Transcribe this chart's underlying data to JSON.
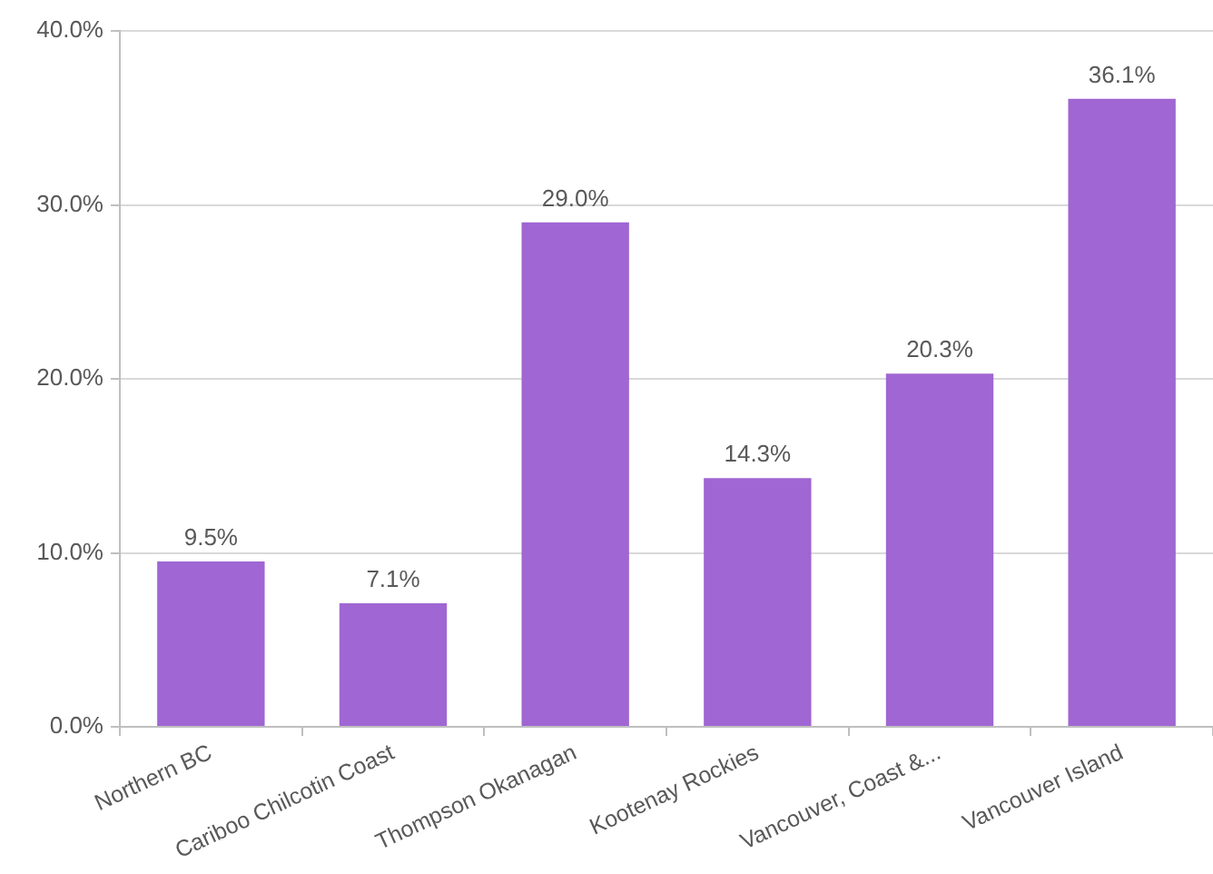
{
  "chart_data": {
    "type": "bar",
    "categories": [
      "Northern BC",
      "Cariboo Chilcotin Coast",
      "Thompson Okanagan",
      "Kootenay Rockies",
      "Vancouver, Coast &...",
      "Vancouver Island"
    ],
    "values": [
      9.5,
      7.1,
      29.0,
      14.3,
      20.3,
      36.1
    ],
    "value_labels": [
      "9.5%",
      "7.1%",
      "29.0%",
      "14.3%",
      "20.3%",
      "36.1%"
    ],
    "color": "#a066d3",
    "ylim": [
      0,
      40
    ],
    "yticks": [
      {
        "value": 0,
        "label": "0.0%"
      },
      {
        "value": 10,
        "label": "10.0%"
      },
      {
        "value": 20,
        "label": "20.0%"
      },
      {
        "value": 30,
        "label": "30.0%"
      },
      {
        "value": 40,
        "label": "40.0%"
      }
    ],
    "grid": "y",
    "legend": false
  }
}
